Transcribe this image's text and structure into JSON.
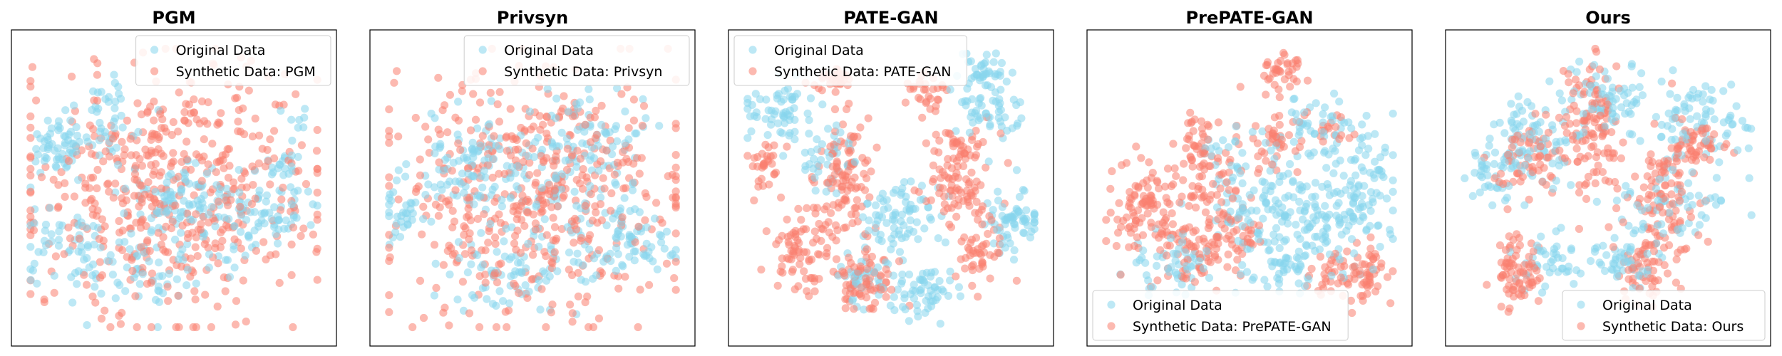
{
  "colors": {
    "original": "#87d6ec",
    "synthetic": "#fa7f6f",
    "axis": "#000000",
    "legend_border": "#cccccc"
  },
  "chart_data": [
    {
      "type": "scatter",
      "title": "PGM",
      "legend_position": "top-right",
      "xlim": [
        0,
        100
      ],
      "ylim": [
        0,
        100
      ],
      "series": [
        {
          "name": "Original Data",
          "color": "#87d6ec",
          "point_count": 420,
          "clusters": [
            [
              12,
              64,
              5,
              5,
              0.14
            ],
            [
              50,
              47,
              8,
              6,
              0.14
            ],
            [
              62,
              42,
              9,
              6,
              0.16
            ],
            [
              82,
              40,
              7,
              7,
              0.12
            ],
            [
              14,
              30,
              7,
              6,
              0.12
            ],
            [
              30,
              74,
              8,
              8,
              0.1
            ],
            [
              88,
              60,
              4,
              8,
              0.07
            ],
            [
              40,
              22,
              10,
              8,
              0.15
            ]
          ]
        },
        {
          "name": "Synthetic Data: PGM",
          "color": "#fa7f6f",
          "point_count": 500,
          "clusters": [
            [
              50,
              50,
              24,
              22,
              1.0
            ]
          ]
        }
      ]
    },
    {
      "type": "scatter",
      "title": "Privsyn",
      "legend_position": "top-right",
      "xlim": [
        0,
        100
      ],
      "ylim": [
        0,
        100
      ],
      "series": [
        {
          "name": "Original Data",
          "color": "#87d6ec",
          "point_count": 420,
          "clusters": [
            [
              30,
              58,
              10,
              8,
              0.2
            ],
            [
              70,
              65,
              9,
              9,
              0.16
            ],
            [
              85,
              32,
              6,
              6,
              0.14
            ],
            [
              45,
              22,
              12,
              7,
              0.18
            ],
            [
              8,
              42,
              4,
              6,
              0.08
            ],
            [
              55,
              45,
              15,
              12,
              0.24
            ]
          ]
        },
        {
          "name": "Synthetic Data: Privsyn",
          "color": "#fa7f6f",
          "point_count": 480,
          "clusters": [
            [
              50,
              48,
              24,
              20,
              1.0
            ]
          ]
        }
      ]
    },
    {
      "type": "scatter",
      "title": "PATE-GAN",
      "legend_position": "top-left",
      "xlim": [
        0,
        100
      ],
      "ylim": [
        0,
        100
      ],
      "series": [
        {
          "name": "Original Data",
          "color": "#87d6ec",
          "point_count": 430,
          "clusters": [
            [
              12,
              75,
              6,
              5,
              0.14
            ],
            [
              52,
              40,
              6,
              6,
              0.18
            ],
            [
              90,
              38,
              5,
              6,
              0.15
            ],
            [
              60,
              15,
              6,
              5,
              0.14
            ],
            [
              82,
              75,
              6,
              7,
              0.13
            ],
            [
              80,
              90,
              4,
              4,
              0.08
            ],
            [
              40,
              20,
              5,
              5,
              0.09
            ],
            [
              30,
              60,
              5,
              5,
              0.09
            ]
          ]
        },
        {
          "name": "Synthetic Data: PATE-GAN",
          "color": "#fa7f6f",
          "point_count": 500,
          "clusters": [
            [
              8,
              58,
              3,
              4,
              0.06
            ],
            [
              35,
              57,
              5,
              10,
              0.2
            ],
            [
              20,
              30,
              6,
              8,
              0.16
            ],
            [
              42,
              18,
              6,
              6,
              0.15
            ],
            [
              72,
              60,
              6,
              8,
              0.13
            ],
            [
              80,
              30,
              5,
              6,
              0.1
            ],
            [
              62,
              82,
              4,
              4,
              0.06
            ],
            [
              30,
              85,
              4,
              3,
              0.06
            ],
            [
              72,
              48,
              4,
              4,
              0.08
            ]
          ]
        }
      ]
    },
    {
      "type": "scatter",
      "title": "PrePATE-GAN",
      "legend_position": "bottom-left",
      "xlim": [
        0,
        100
      ],
      "ylim": [
        0,
        100
      ],
      "series": [
        {
          "name": "Original Data",
          "color": "#87d6ec",
          "point_count": 430,
          "clusters": [
            [
              78,
              40,
              10,
              8,
              0.26
            ],
            [
              55,
              45,
              10,
              8,
              0.2
            ],
            [
              75,
              70,
              8,
              6,
              0.14
            ],
            [
              25,
              25,
              7,
              5,
              0.12
            ],
            [
              62,
              25,
              8,
              6,
              0.16
            ],
            [
              90,
              55,
              4,
              8,
              0.08
            ],
            [
              45,
              60,
              6,
              5,
              0.06
            ]
          ]
        },
        {
          "name": "Synthetic Data: PrePATE-GAN",
          "color": "#fa7f6f",
          "point_count": 480,
          "clusters": [
            [
              15,
              42,
              6,
              8,
              0.2
            ],
            [
              35,
              55,
              6,
              8,
              0.15
            ],
            [
              32,
              28,
              6,
              6,
              0.14
            ],
            [
              62,
              88,
              4,
              4,
              0.08
            ],
            [
              80,
              20,
              5,
              5,
              0.1
            ],
            [
              58,
              65,
              4,
              5,
              0.08
            ],
            [
              90,
              22,
              4,
              6,
              0.07
            ],
            [
              45,
              35,
              5,
              6,
              0.1
            ],
            [
              75,
              70,
              4,
              4,
              0.04
            ],
            [
              32,
              70,
              3,
              4,
              0.04
            ]
          ]
        }
      ]
    },
    {
      "type": "scatter",
      "title": "Ours",
      "legend_position": "bottom-right",
      "xlim": [
        0,
        100
      ],
      "ylim": [
        0,
        100
      ],
      "series": [
        {
          "name": "Original Data",
          "color": "#87d6ec",
          "point_count": 420,
          "clusters": [
            [
              25,
              65,
              7,
              8,
              0.2
            ],
            [
              50,
              80,
              9,
              6,
              0.18
            ],
            [
              82,
              72,
              8,
              7,
              0.18
            ],
            [
              30,
              25,
              7,
              5,
              0.1
            ],
            [
              70,
              45,
              10,
              8,
              0.14
            ],
            [
              12,
              55,
              4,
              6,
              0.08
            ],
            [
              55,
              25,
              6,
              5,
              0.12
            ]
          ]
        },
        {
          "name": "Synthetic Data: Ours",
          "color": "#fa7f6f",
          "point_count": 460,
          "clusters": [
            [
              44,
              70,
              6,
              12,
              0.26
            ],
            [
              68,
              45,
              6,
              12,
              0.26
            ],
            [
              20,
              22,
              4,
              6,
              0.16
            ],
            [
              25,
              60,
              6,
              6,
              0.14
            ],
            [
              60,
              20,
              4,
              5,
              0.08
            ],
            [
              80,
              65,
              4,
              4,
              0.1
            ]
          ]
        }
      ]
    }
  ]
}
